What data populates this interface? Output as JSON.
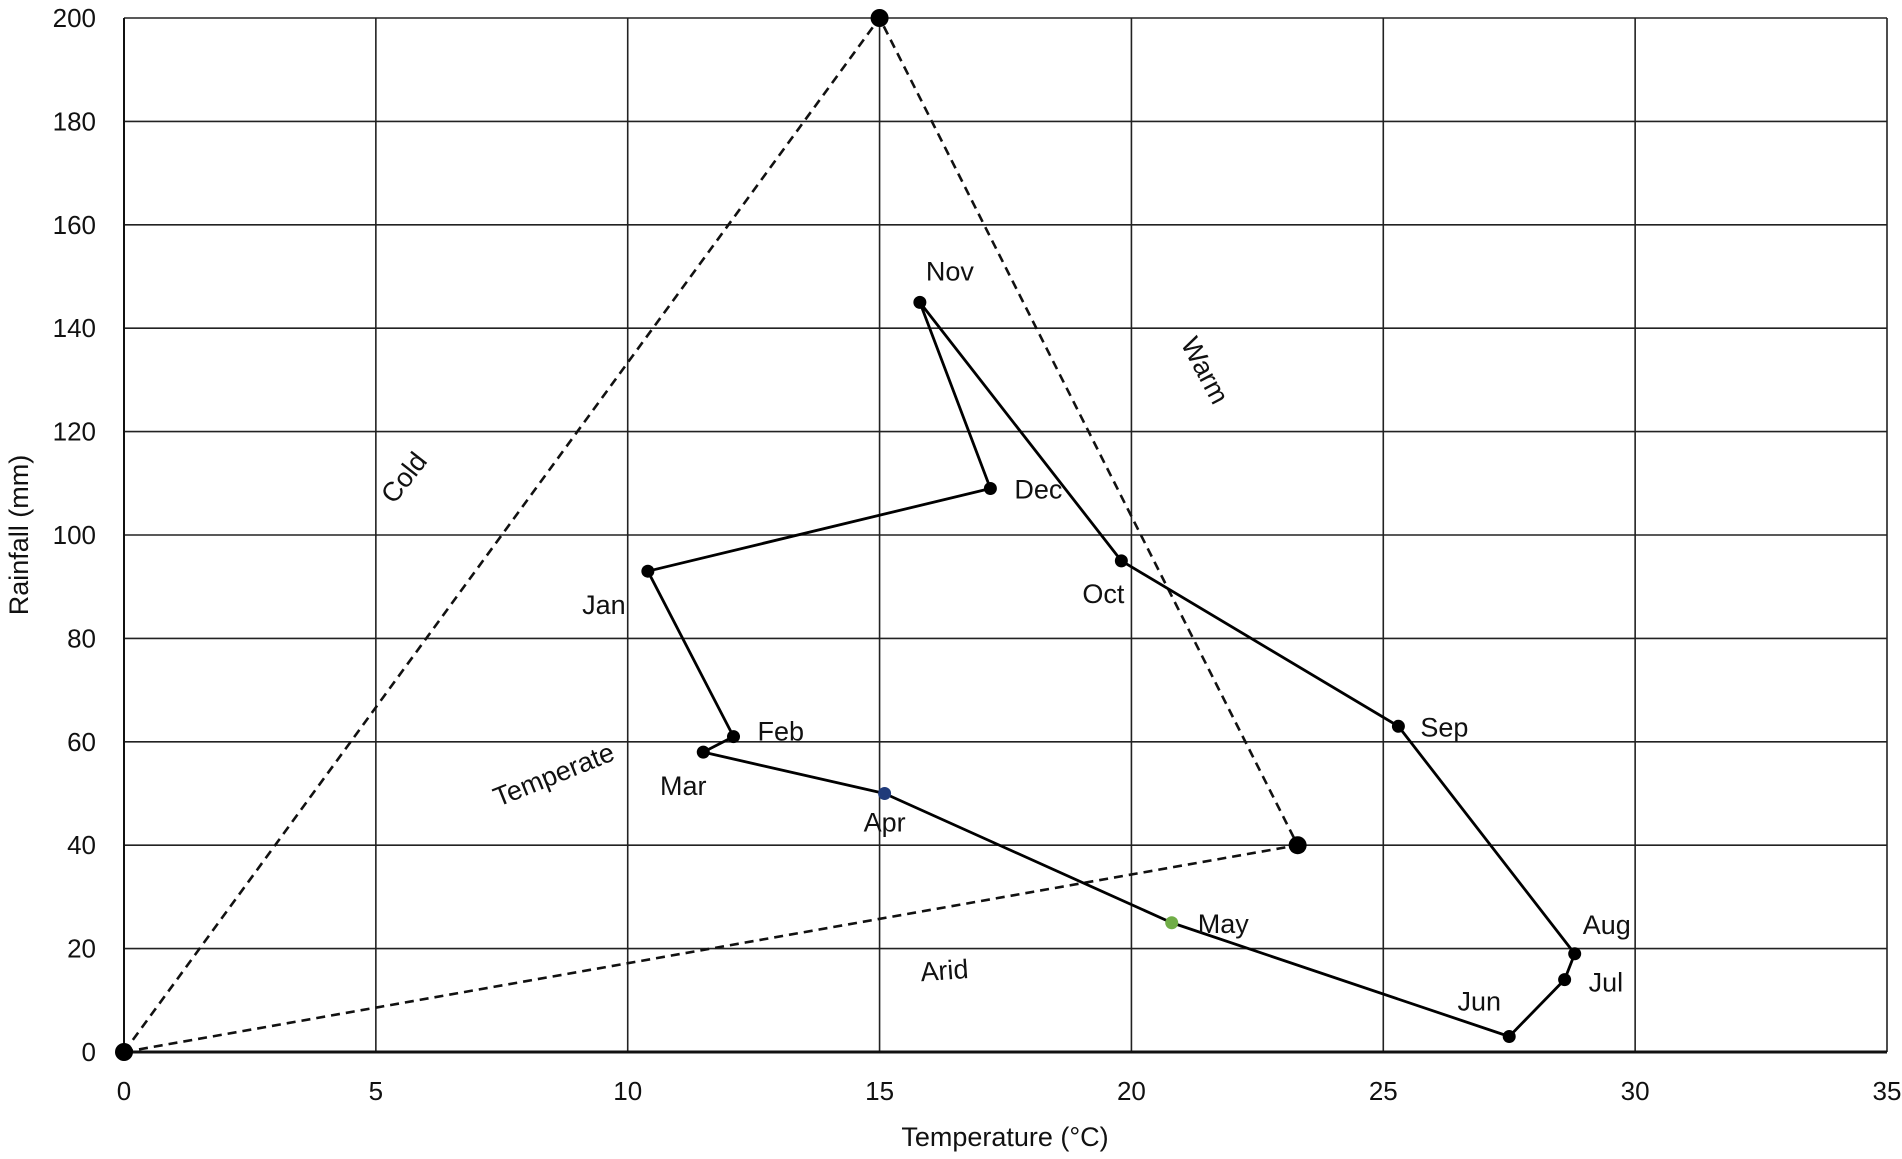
{
  "chart_data": {
    "type": "line",
    "xlabel": "Temperature (°C)",
    "ylabel": "Rainfall (mm)",
    "xlim": [
      0,
      35
    ],
    "ylim": [
      0,
      200
    ],
    "x_ticks": [
      0,
      5,
      10,
      15,
      20,
      25,
      30,
      35
    ],
    "y_ticks": [
      0,
      20,
      40,
      60,
      80,
      100,
      120,
      140,
      160,
      180,
      200
    ],
    "grid": true,
    "series": [
      {
        "style": "solid",
        "color": "#000000",
        "points": [
          {
            "label": "Jan",
            "x": 10.4,
            "y": 93
          },
          {
            "label": "Feb",
            "x": 12.1,
            "y": 61
          },
          {
            "label": "Mar",
            "x": 11.5,
            "y": 58
          },
          {
            "label": "Apr",
            "x": 15.1,
            "y": 50,
            "color": "#1f3a7a"
          },
          {
            "label": "May",
            "x": 20.8,
            "y": 25,
            "color": "#70ad47"
          },
          {
            "label": "Jun",
            "x": 27.5,
            "y": 3
          },
          {
            "label": "Jul",
            "x": 28.6,
            "y": 14
          },
          {
            "label": "Aug",
            "x": 28.8,
            "y": 19
          },
          {
            "label": "Sep",
            "x": 25.3,
            "y": 63
          },
          {
            "label": "Oct",
            "x": 19.8,
            "y": 95
          },
          {
            "label": "Nov",
            "x": 15.8,
            "y": 145
          },
          {
            "label": "Dec",
            "x": 17.2,
            "y": 109
          }
        ],
        "path_order": [
          "Nov",
          "Dec",
          "Jan",
          "Feb",
          "Mar",
          "Apr",
          "May",
          "Jun",
          "Jul",
          "Aug",
          "Sep",
          "Oct",
          "Nov"
        ]
      }
    ],
    "triangle": {
      "style": "dashed",
      "vertices": [
        {
          "x": 0,
          "y": 0
        },
        {
          "x": 15,
          "y": 200
        },
        {
          "x": 23.3,
          "y": 40
        }
      ]
    },
    "zones": [
      {
        "label": "Cold",
        "x": 5.7,
        "y": 110,
        "angle": -52
      },
      {
        "label": "Warm",
        "x": 21.3,
        "y": 131,
        "angle": 62
      },
      {
        "label": "Temperate",
        "x": 8.6,
        "y": 52,
        "angle": -22
      },
      {
        "label": "Arid",
        "x": 16.3,
        "y": 14,
        "angle": -4
      }
    ]
  }
}
